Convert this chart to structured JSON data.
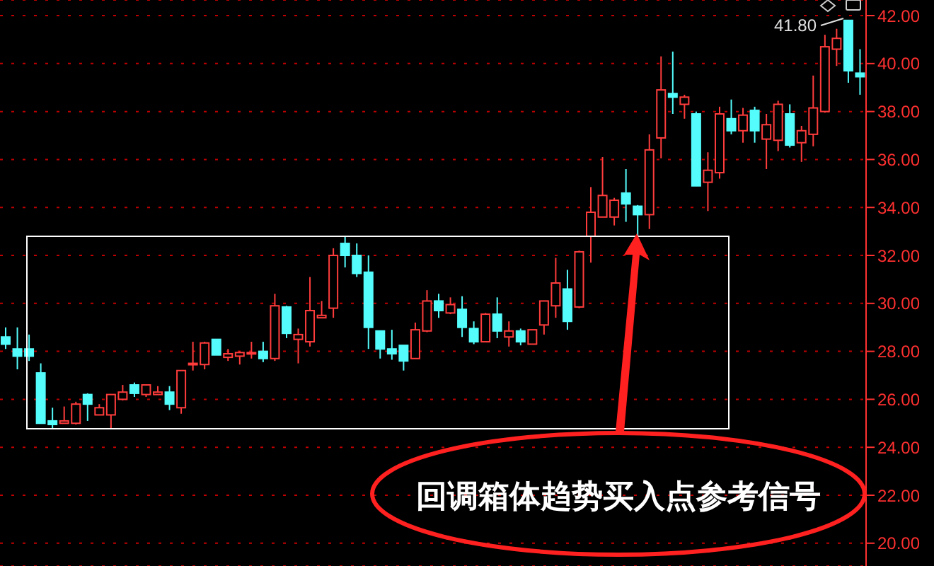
{
  "chart_data": {
    "type": "candlestick",
    "annotations": [
      "回调箱体趋势买入点参考信号",
      "41.80"
    ],
    "categories": [
      null,
      null,
      null,
      null,
      null,
      null,
      null,
      null,
      null,
      null,
      null,
      null,
      null,
      null,
      null,
      null,
      null,
      null,
      null,
      null,
      null,
      null,
      null,
      null,
      null,
      null,
      null,
      null,
      null,
      null,
      null,
      null,
      null,
      null,
      null,
      null,
      null,
      null,
      null,
      null,
      null,
      null,
      null,
      null,
      null,
      null,
      null,
      null,
      null,
      null,
      null,
      null,
      null,
      null,
      null,
      null,
      null,
      null,
      null,
      null,
      null,
      null,
      null,
      null,
      null,
      null,
      null,
      null,
      null,
      null,
      null,
      null,
      null,
      null
    ],
    "ohlc": [
      [
        28.6,
        29.0,
        28.1,
        28.3
      ],
      [
        28.1,
        29.0,
        27.25,
        27.8
      ],
      [
        28.1,
        28.7,
        27.6,
        27.8
      ],
      [
        27.1,
        27.5,
        25.0,
        25.0
      ],
      [
        25.1,
        25.65,
        24.8,
        24.95
      ],
      [
        25.0,
        25.7,
        25.0,
        25.1
      ],
      [
        25.0,
        25.9,
        24.95,
        25.8
      ],
      [
        26.2,
        26.25,
        25.1,
        25.8
      ],
      [
        25.35,
        25.8,
        25.35,
        25.65
      ],
      [
        25.35,
        26.2,
        24.8,
        26.2
      ],
      [
        26.0,
        26.6,
        25.95,
        26.3
      ],
      [
        26.6,
        26.7,
        26.1,
        26.25
      ],
      [
        26.2,
        26.6,
        26.1,
        26.6
      ],
      [
        26.2,
        26.55,
        26.2,
        26.3
      ],
      [
        26.3,
        26.55,
        25.55,
        25.8
      ],
      [
        25.65,
        27.2,
        25.4,
        27.2
      ],
      [
        27.45,
        28.4,
        27.2,
        27.5
      ],
      [
        27.45,
        28.4,
        27.25,
        28.35
      ],
      [
        28.5,
        28.5,
        27.85,
        27.85
      ],
      [
        27.75,
        28.1,
        27.6,
        27.9
      ],
      [
        27.8,
        28.0,
        27.45,
        27.95
      ],
      [
        27.9,
        28.4,
        27.7,
        27.95
      ],
      [
        28.0,
        28.4,
        27.55,
        27.7
      ],
      [
        27.7,
        30.4,
        27.6,
        29.9
      ],
      [
        29.85,
        29.9,
        28.55,
        28.75
      ],
      [
        28.5,
        28.95,
        27.5,
        28.7
      ],
      [
        28.4,
        31.1,
        28.2,
        29.7
      ],
      [
        29.4,
        30.1,
        29.4,
        29.5
      ],
      [
        29.8,
        32.3,
        29.4,
        32.0
      ],
      [
        32.5,
        32.8,
        31.5,
        32.0
      ],
      [
        32.0,
        32.5,
        31.1,
        31.25
      ],
      [
        31.3,
        32.0,
        28.1,
        29.0
      ],
      [
        28.85,
        28.85,
        27.7,
        28.1
      ],
      [
        28.1,
        28.9,
        27.65,
        27.9
      ],
      [
        28.25,
        28.25,
        27.2,
        27.6
      ],
      [
        27.7,
        29.2,
        27.7,
        28.9
      ],
      [
        28.85,
        30.55,
        28.8,
        30.1
      ],
      [
        30.1,
        30.4,
        29.4,
        29.7
      ],
      [
        29.6,
        30.25,
        29.55,
        29.95
      ],
      [
        29.75,
        30.3,
        28.6,
        29.0
      ],
      [
        28.95,
        29.25,
        28.3,
        28.4
      ],
      [
        28.4,
        29.6,
        28.4,
        29.55
      ],
      [
        29.55,
        30.25,
        28.55,
        28.85
      ],
      [
        28.6,
        29.25,
        28.2,
        28.85
      ],
      [
        28.85,
        28.95,
        28.25,
        28.4
      ],
      [
        28.3,
        28.9,
        28.3,
        28.9
      ],
      [
        29.1,
        30.1,
        28.7,
        30.1
      ],
      [
        29.9,
        31.9,
        29.4,
        30.85
      ],
      [
        30.6,
        31.4,
        28.9,
        29.25
      ],
      [
        29.85,
        32.2,
        29.8,
        32.15
      ],
      [
        32.8,
        34.85,
        31.7,
        33.8
      ],
      [
        33.6,
        36.1,
        33.6,
        34.5
      ],
      [
        33.6,
        34.4,
        33.25,
        34.3
      ],
      [
        34.6,
        35.6,
        33.4,
        34.15
      ],
      [
        34.05,
        34.1,
        32.8,
        33.7
      ],
      [
        33.7,
        37.05,
        33.1,
        36.4
      ],
      [
        36.9,
        40.3,
        36.05,
        38.9
      ],
      [
        38.75,
        40.5,
        37.9,
        38.6
      ],
      [
        38.3,
        38.7,
        37.7,
        38.6
      ],
      [
        37.9,
        38.0,
        34.9,
        34.9
      ],
      [
        35.05,
        36.3,
        33.85,
        35.55
      ],
      [
        35.45,
        38.2,
        35.2,
        37.9
      ],
      [
        37.7,
        38.5,
        37.05,
        37.2
      ],
      [
        37.2,
        38.15,
        36.7,
        37.85
      ],
      [
        38.05,
        38.2,
        36.7,
        37.2
      ],
      [
        36.85,
        37.9,
        35.6,
        37.45
      ],
      [
        36.8,
        38.45,
        36.35,
        38.3
      ],
      [
        37.9,
        38.3,
        36.5,
        36.6
      ],
      [
        36.7,
        37.4,
        35.9,
        37.2
      ],
      [
        37.05,
        39.5,
        36.55,
        38.15
      ],
      [
        38.0,
        41.2,
        37.95,
        40.7
      ],
      [
        40.6,
        41.45,
        39.9,
        41.05
      ],
      [
        41.8,
        41.8,
        39.2,
        39.7
      ],
      [
        39.6,
        40.6,
        38.7,
        39.45
      ]
    ],
    "colors": [
      "#54fcfc",
      "#54fcfc",
      "#54fcfc",
      "#54fcfc",
      "#54fcfc",
      "#ff3c3c",
      "#ff3c3c",
      "#54fcfc",
      "#ff3c3c",
      "#ff3c3c",
      "#ff3c3c",
      "#54fcfc",
      "#ff3c3c",
      "#ff3c3c",
      "#54fcfc",
      "#ff3c3c",
      "#ff3c3c",
      "#ff3c3c",
      "#54fcfc",
      "#ff3c3c",
      "#ff3c3c",
      "#ff3c3c",
      "#54fcfc",
      "#ff3c3c",
      "#54fcfc",
      "#ff3c3c",
      "#ff3c3c",
      "#ff3c3c",
      "#ff3c3c",
      "#54fcfc",
      "#54fcfc",
      "#54fcfc",
      "#54fcfc",
      "#54fcfc",
      "#54fcfc",
      "#ff3c3c",
      "#ff3c3c",
      "#54fcfc",
      "#ff3c3c",
      "#54fcfc",
      "#54fcfc",
      "#ff3c3c",
      "#54fcfc",
      "#ff3c3c",
      "#54fcfc",
      "#ff3c3c",
      "#ff3c3c",
      "#ff3c3c",
      "#54fcfc",
      "#ff3c3c",
      "#ff3c3c",
      "#ff3c3c",
      "#ff3c3c",
      "#54fcfc",
      "#54fcfc",
      "#ff3c3c",
      "#ff3c3c",
      "#54fcfc",
      "#ff3c3c",
      "#54fcfc",
      "#ff3c3c",
      "#ff3c3c",
      "#54fcfc",
      "#ff3c3c",
      "#54fcfc",
      "#ff3c3c",
      "#ff3c3c",
      "#54fcfc",
      "#ff3c3c",
      "#ff3c3c",
      "#ff3c3c",
      "#ff3c3c",
      "#54fcfc",
      "#54fcfc"
    ],
    "ylim": [
      19.05,
      42.65
    ],
    "yticks": [
      {
        "value": 20,
        "label": "20.00"
      },
      {
        "value": 22,
        "label": "22.00"
      },
      {
        "value": 24,
        "label": "24.00"
      },
      {
        "value": 26,
        "label": "26.00"
      },
      {
        "value": 28,
        "label": "28.00"
      },
      {
        "value": 30,
        "label": "30.00"
      },
      {
        "value": 32,
        "label": "32.00"
      },
      {
        "value": 34,
        "label": "34.00"
      },
      {
        "value": 36,
        "label": "36.00"
      },
      {
        "value": 38,
        "label": "38.00"
      },
      {
        "value": 40,
        "label": "40.00"
      },
      {
        "value": 42,
        "label": "42.00"
      }
    ],
    "grid": "y",
    "tick_labels": "y"
  }
}
